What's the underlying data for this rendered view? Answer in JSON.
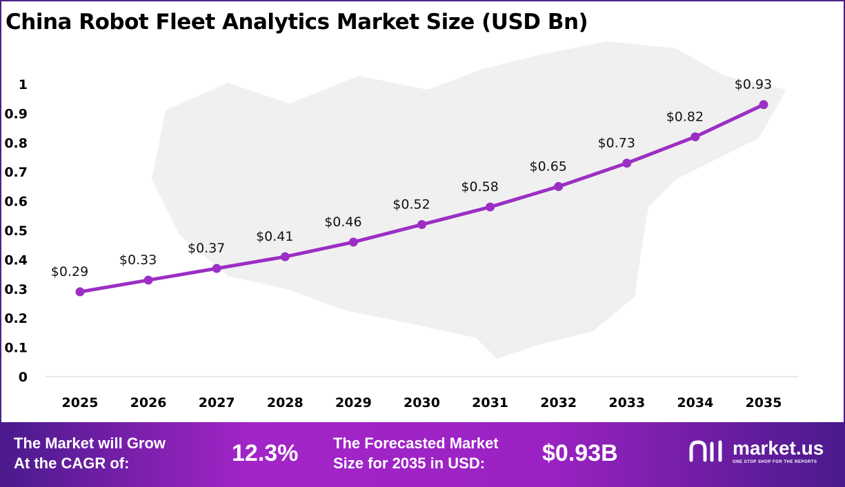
{
  "chart_data": {
    "type": "line",
    "title": "China Robot Fleet Analytics Market Size (USD Bn)",
    "categories": [
      "2025",
      "2026",
      "2027",
      "2028",
      "2029",
      "2030",
      "2031",
      "2032",
      "2033",
      "2034",
      "2035"
    ],
    "values": [
      0.29,
      0.33,
      0.37,
      0.41,
      0.46,
      0.52,
      0.58,
      0.65,
      0.73,
      0.82,
      0.93
    ],
    "data_labels": [
      "$0.29",
      "$0.33",
      "$0.37",
      "$0.41",
      "$0.46",
      "$0.52",
      "$0.58",
      "$0.65",
      "$0.73",
      "$0.82",
      "$0.93"
    ],
    "yticks": [
      "0",
      "0.1",
      "0.2",
      "0.3",
      "0.4",
      "0.5",
      "0.6",
      "0.7",
      "0.8",
      "0.9",
      "1"
    ],
    "ylim": [
      0,
      1
    ],
    "grid": false,
    "line_color": "#9b2fc4"
  },
  "banner": {
    "cagr_label": [
      "The Market will Grow",
      "At the CAGR of:"
    ],
    "cagr_value": "12.3%",
    "forecast_label": [
      "The Forecasted Market",
      "Size for 2035 in USD:"
    ],
    "forecast_value": "$0.93B",
    "logo_text": "market.us",
    "logo_tagline": "ONE STOP SHOP FOR THE REPORTS"
  }
}
